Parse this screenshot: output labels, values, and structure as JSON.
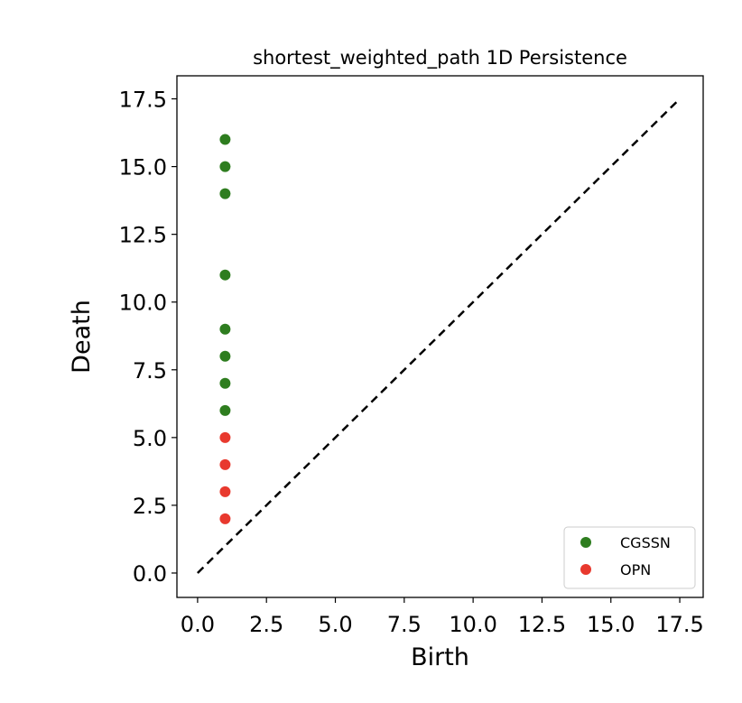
{
  "chart_data": {
    "type": "scatter",
    "title": "shortest_weighted_path 1D Persistence",
    "xlabel": "Birth",
    "ylabel": "Death",
    "xlim": [
      -0.75,
      18.35
    ],
    "ylim": [
      -0.9,
      18.35
    ],
    "xticks": [
      "0.0",
      "2.5",
      "5.0",
      "7.5",
      "10.0",
      "12.5",
      "15.0",
      "17.5"
    ],
    "yticks": [
      "0.0",
      "2.5",
      "5.0",
      "7.5",
      "10.0",
      "12.5",
      "15.0",
      "17.5"
    ],
    "grid": false,
    "legend_position": "lower-right",
    "diagonal": {
      "from": [
        0,
        0
      ],
      "to": [
        17.5,
        17.5
      ],
      "style": "dashed",
      "color": "#000000"
    },
    "series": [
      {
        "name": "CGSSN",
        "color": "#2e7d1f",
        "points": [
          [
            1,
            16
          ],
          [
            1,
            15
          ],
          [
            1,
            14
          ],
          [
            1,
            11
          ],
          [
            1,
            9
          ],
          [
            1,
            8
          ],
          [
            1,
            7
          ],
          [
            1,
            6
          ]
        ]
      },
      {
        "name": "OPN",
        "color": "#e8392e",
        "points": [
          [
            1,
            5
          ],
          [
            1,
            4
          ],
          [
            1,
            3
          ],
          [
            1,
            2
          ]
        ]
      }
    ]
  }
}
